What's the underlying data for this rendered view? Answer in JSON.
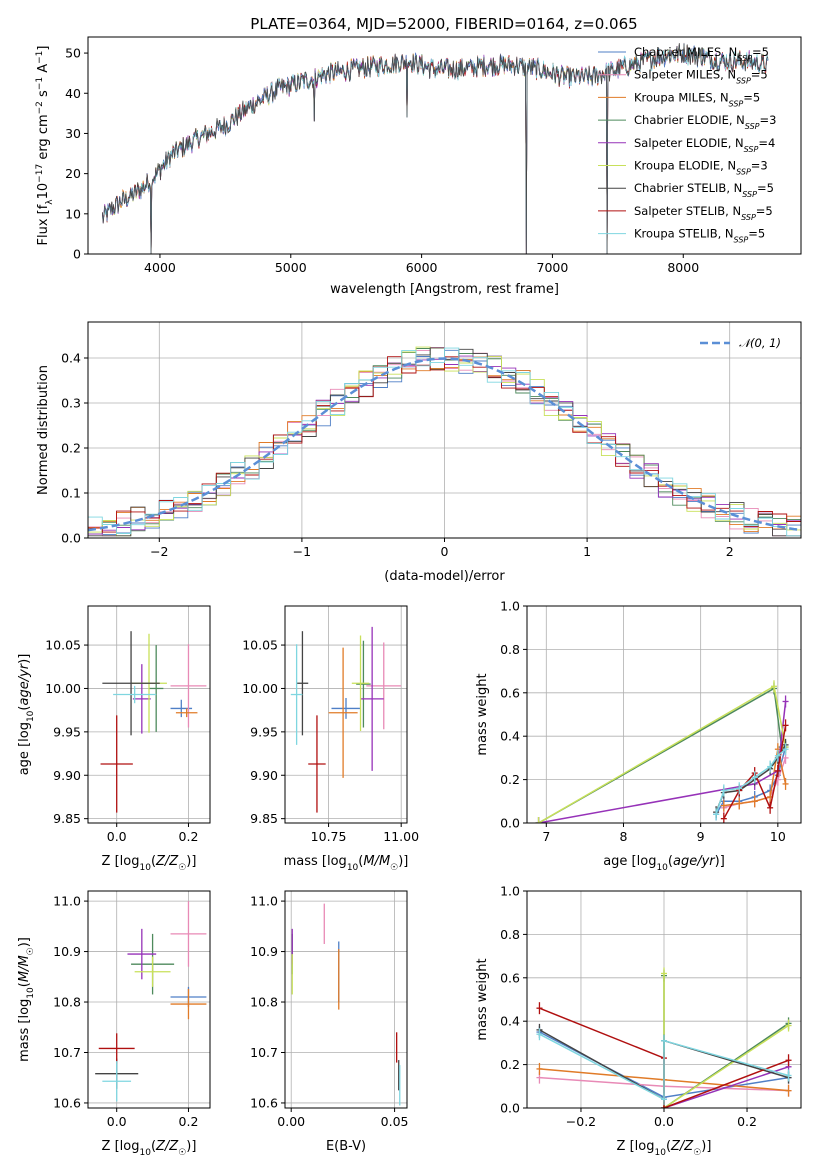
{
  "figure_title": "PLATE=0364, MJD=52000, FIBERID=0164, z=0.065",
  "colors": {
    "Chabrier MILES": "#4f7fc6",
    "Salpeter MILES": "#e88ab6",
    "Kroupa MILES": "#e07b28",
    "Chabrier ELODIE": "#4e8a5c",
    "Salpeter ELODIE": "#9632b8",
    "Kroupa ELODIE": "#c8e05a",
    "Chabrier STELIB": "#444444",
    "Salpeter STELIB": "#b01010",
    "Kroupa STELIB": "#7fd6e0",
    "gaussian": "#5b8fd6",
    "grid": "#b0b0b0"
  },
  "chart_data": [
    {
      "id": "spectrum",
      "type": "line",
      "xlabel": "wavelength [Angstrom, rest frame]",
      "ylabel": "Flux [f_λ 10^-17 erg cm^-2 s^-1 A^-1]",
      "xlim": [
        3450,
        8900
      ],
      "ylim": [
        0,
        54
      ],
      "xticks": [
        4000,
        5000,
        6000,
        7000,
        8000
      ],
      "yticks": [
        0,
        10,
        20,
        30,
        40,
        50
      ],
      "grid": false,
      "legend_position": "top-right",
      "legend": [
        {
          "name": "Chabrier MILES",
          "nssp": "5"
        },
        {
          "name": "Salpeter MILES",
          "nssp": "5"
        },
        {
          "name": "Kroupa MILES",
          "nssp": "5"
        },
        {
          "name": "Chabrier ELODIE",
          "nssp": "3"
        },
        {
          "name": "Salpeter ELODIE",
          "nssp": "4"
        },
        {
          "name": "Kroupa ELODIE",
          "nssp": "3"
        },
        {
          "name": "Chabrier STELIB",
          "nssp": "5"
        },
        {
          "name": "Salpeter STELIB",
          "nssp": "5"
        },
        {
          "name": "Kroupa STELIB",
          "nssp": "5"
        }
      ],
      "continuum": {
        "x": [
          3560,
          3700,
          3850,
          3950,
          4100,
          4300,
          4500,
          4700,
          4900,
          5100,
          5300,
          5500,
          5700,
          5900,
          6100,
          6300,
          6500,
          6700,
          6900,
          7100,
          7300,
          7500,
          7800,
          8000,
          8300,
          8500,
          8650
        ],
        "y": [
          9,
          13,
          16,
          19,
          25,
          29,
          32,
          37,
          41,
          43,
          45,
          46,
          47,
          48,
          46,
          46,
          47,
          47,
          46,
          44,
          44,
          46,
          49,
          50,
          48,
          48,
          47
        ]
      },
      "drops": [
        {
          "x": 3930,
          "y": 0
        },
        {
          "x": 5180,
          "y": 33
        },
        {
          "x": 5890,
          "y": 34
        },
        {
          "x": 6800,
          "y": 0
        },
        {
          "x": 7420,
          "y": 0
        }
      ]
    },
    {
      "id": "residuals",
      "type": "histogram",
      "xlabel": "(data-model)/error",
      "ylabel": "Normed distribution",
      "xlim": [
        -2.5,
        2.5
      ],
      "ylim": [
        0,
        0.48
      ],
      "xticks": [
        -2,
        -1,
        0,
        1,
        2
      ],
      "yticks": [
        0,
        0.1,
        0.2,
        0.3,
        0.4
      ],
      "grid": true,
      "bin_width": 0.1,
      "legend": [
        {
          "name": "𝒩(0, 1)",
          "style": "dashed"
        }
      ],
      "legend_position": "top-right"
    },
    {
      "id": "age_vs_Z",
      "type": "errorbar",
      "xlabel": "Z [log10(Z/Z☉)]",
      "ylabel": "age [log10(age/yr)]",
      "xlim": [
        -0.08,
        0.26
      ],
      "ylim": [
        9.845,
        10.095
      ],
      "xticks": [
        0.0,
        0.2
      ],
      "yticks": [
        9.85,
        9.9,
        9.95,
        10.0,
        10.05
      ],
      "grid": true,
      "points": [
        {
          "series": "Chabrier MILES",
          "x": 0.18,
          "y": 9.977,
          "xerr": 0.03,
          "yerr": 0.01
        },
        {
          "series": "Salpeter MILES",
          "x": 0.2,
          "y": 10.003,
          "xerr": 0.05,
          "yerr": 0.048
        },
        {
          "series": "Kroupa MILES",
          "x": 0.195,
          "y": 9.972,
          "xerr": 0.03,
          "yerr": 0.005
        },
        {
          "series": "Chabrier ELODIE",
          "x": 0.11,
          "y": 10.0,
          "xerr": 0.02,
          "yerr": 0.05
        },
        {
          "series": "Salpeter ELODIE",
          "x": 0.07,
          "y": 9.988,
          "xerr": 0.025,
          "yerr": 0.04
        },
        {
          "series": "Kroupa ELODIE",
          "x": 0.09,
          "y": 10.006,
          "xerr": 0.05,
          "yerr": 0.057
        },
        {
          "series": "Chabrier STELIB",
          "x": 0.04,
          "y": 10.006,
          "xerr": 0.08,
          "yerr": 0.06
        },
        {
          "series": "Salpeter STELIB",
          "x": 0.0,
          "y": 9.913,
          "xerr": 0.045,
          "yerr": 0.056
        },
        {
          "series": "Kroupa STELIB",
          "x": 0.05,
          "y": 9.993,
          "xerr": 0.06,
          "yerr": 0.01
        }
      ]
    },
    {
      "id": "age_vs_mass",
      "type": "errorbar",
      "xlabel": "mass [log10(M/M☉)]",
      "ylabel": "",
      "xlim": [
        10.6,
        11.02
      ],
      "ylim": [
        9.845,
        10.095
      ],
      "xticks": [
        10.75,
        11.0
      ],
      "yticks": [
        9.85,
        9.9,
        9.95,
        10.0,
        10.05
      ],
      "grid": true,
      "points": [
        {
          "series": "Chabrier MILES",
          "x": 10.81,
          "y": 9.977,
          "xerr": 0.05,
          "yerr": 0.012
        },
        {
          "series": "Salpeter MILES",
          "x": 10.94,
          "y": 10.003,
          "xerr": 0.06,
          "yerr": 0.05
        },
        {
          "series": "Kroupa MILES",
          "x": 10.8,
          "y": 9.972,
          "xerr": 0.05,
          "yerr": 0.075
        },
        {
          "series": "Chabrier ELODIE",
          "x": 10.87,
          "y": 10.005,
          "xerr": 0.025,
          "yerr": 0.05
        },
        {
          "series": "Salpeter ELODIE",
          "x": 10.9,
          "y": 9.988,
          "xerr": 0.04,
          "yerr": 0.083
        },
        {
          "series": "Kroupa ELODIE",
          "x": 10.86,
          "y": 10.006,
          "xerr": 0.03,
          "yerr": 0.055
        },
        {
          "series": "Chabrier STELIB",
          "x": 10.66,
          "y": 10.006,
          "xerr": 0.02,
          "yerr": 0.06
        },
        {
          "series": "Salpeter STELIB",
          "x": 10.71,
          "y": 9.913,
          "xerr": 0.03,
          "yerr": 0.056
        },
        {
          "series": "Kroupa STELIB",
          "x": 10.64,
          "y": 9.993,
          "xerr": 0.02,
          "yerr": 0.058
        }
      ]
    },
    {
      "id": "weight_vs_age",
      "type": "line",
      "xlabel": "age [log10(age/yr)]",
      "ylabel": "mass weight",
      "xlim": [
        6.75,
        10.3
      ],
      "ylim": [
        0,
        1.0
      ],
      "xticks": [
        7,
        8,
        9,
        10
      ],
      "yticks": [
        0.0,
        0.2,
        0.4,
        0.6,
        0.8,
        1.0
      ],
      "grid": true,
      "series": [
        {
          "name": "Chabrier MILES",
          "x": [
            9.2,
            9.3,
            9.5,
            9.7,
            9.9,
            10.0,
            10.1
          ],
          "y": [
            0.04,
            0.1,
            0.1,
            0.12,
            0.15,
            0.22,
            0.35
          ]
        },
        {
          "name": "Salpeter MILES",
          "x": [
            9.3,
            9.5,
            9.7,
            9.9,
            10.0,
            10.1
          ],
          "y": [
            0.07,
            0.09,
            0.1,
            0.12,
            0.2,
            0.3
          ]
        },
        {
          "name": "Kroupa MILES",
          "x": [
            9.3,
            9.5,
            9.7,
            9.9,
            10.0,
            10.1
          ],
          "y": [
            0.08,
            0.09,
            0.1,
            0.12,
            0.34,
            0.18
          ]
        },
        {
          "name": "Chabrier ELODIE",
          "x": [
            6.9,
            9.95,
            10.05
          ],
          "y": [
            0.0,
            0.62,
            0.35
          ]
        },
        {
          "name": "Salpeter ELODIE",
          "x": [
            6.9,
            9.7,
            10.0,
            10.1
          ],
          "y": [
            0.0,
            0.18,
            0.24,
            0.56
          ]
        },
        {
          "name": "Kroupa ELODIE",
          "x": [
            6.9,
            9.95,
            10.1
          ],
          "y": [
            0.0,
            0.63,
            0.35
          ]
        },
        {
          "name": "Chabrier STELIB",
          "x": [
            9.2,
            9.3,
            9.5,
            9.7,
            9.9,
            10.0,
            10.1
          ],
          "y": [
            0.05,
            0.14,
            0.15,
            0.2,
            0.25,
            0.3,
            0.36
          ]
        },
        {
          "name": "Salpeter STELIB",
          "x": [
            9.3,
            9.5,
            9.7,
            9.9,
            10.0,
            10.1
          ],
          "y": [
            0.02,
            0.15,
            0.23,
            0.07,
            0.24,
            0.45
          ]
        },
        {
          "name": "Kroupa STELIB",
          "x": [
            9.2,
            9.3,
            9.5,
            9.7,
            9.9,
            10.0,
            10.1
          ],
          "y": [
            0.04,
            0.15,
            0.16,
            0.21,
            0.26,
            0.31,
            0.34
          ]
        }
      ]
    },
    {
      "id": "mass_vs_Z",
      "type": "errorbar",
      "xlabel": "Z [log10(Z/Z☉)]",
      "ylabel": "mass [log10(M/M☉)]",
      "xlim": [
        -0.08,
        0.26
      ],
      "ylim": [
        10.59,
        11.02
      ],
      "xticks": [
        0.0,
        0.2
      ],
      "yticks": [
        10.6,
        10.7,
        10.8,
        10.9,
        11.0
      ],
      "grid": true,
      "points": [
        {
          "series": "Chabrier MILES",
          "x": 0.2,
          "y": 10.81,
          "xerr": 0.05,
          "yerr": 0.02
        },
        {
          "series": "Salpeter MILES",
          "x": 0.2,
          "y": 10.935,
          "xerr": 0.05,
          "yerr": 0.065
        },
        {
          "series": "Kroupa MILES",
          "x": 0.2,
          "y": 10.796,
          "xerr": 0.05,
          "yerr": 0.03
        },
        {
          "series": "Chabrier ELODIE",
          "x": 0.1,
          "y": 10.875,
          "xerr": 0.06,
          "yerr": 0.06
        },
        {
          "series": "Salpeter ELODIE",
          "x": 0.07,
          "y": 10.895,
          "xerr": 0.04,
          "yerr": 0.05
        },
        {
          "series": "Kroupa ELODIE",
          "x": 0.1,
          "y": 10.86,
          "xerr": 0.05,
          "yerr": 0.03
        },
        {
          "series": "Chabrier STELIB",
          "x": 0.0,
          "y": 10.658,
          "xerr": 0.06,
          "yerr": 0.03
        },
        {
          "series": "Salpeter STELIB",
          "x": 0.0,
          "y": 10.708,
          "xerr": 0.05,
          "yerr": 0.03
        },
        {
          "series": "Kroupa STELIB",
          "x": 0.0,
          "y": 10.643,
          "xerr": 0.04,
          "yerr": 0.04
        }
      ]
    },
    {
      "id": "mass_vs_ebv",
      "type": "errorbar",
      "xlabel": "E(B-V)",
      "ylabel": "",
      "xlim": [
        -0.003,
        0.056
      ],
      "ylim": [
        10.59,
        11.02
      ],
      "xticks": [
        0.0,
        0.05
      ],
      "yticks": [
        10.6,
        10.7,
        10.8,
        10.9,
        11.0
      ],
      "grid": true,
      "points": [
        {
          "series": "Chabrier MILES",
          "x": 0.023,
          "y": 10.86,
          "xerr": 0.0,
          "yerr": 0.06
        },
        {
          "series": "Salpeter MILES",
          "x": 0.016,
          "y": 10.955,
          "xerr": 0.0,
          "yerr": 0.04
        },
        {
          "series": "Kroupa MILES",
          "x": 0.023,
          "y": 10.845,
          "xerr": 0.0,
          "yerr": 0.06
        },
        {
          "series": "Chabrier ELODIE",
          "x": 0.0005,
          "y": 10.895,
          "xerr": 0.0,
          "yerr": 0.04
        },
        {
          "series": "Salpeter ELODIE",
          "x": 0.0005,
          "y": 10.91,
          "xerr": 0.0,
          "yerr": 0.035
        },
        {
          "series": "Kroupa ELODIE",
          "x": 0.0005,
          "y": 10.855,
          "xerr": 0.0,
          "yerr": 0.04
        },
        {
          "series": "Chabrier STELIB",
          "x": 0.052,
          "y": 10.655,
          "xerr": 0.0,
          "yerr": 0.03
        },
        {
          "series": "Salpeter STELIB",
          "x": 0.051,
          "y": 10.71,
          "xerr": 0.0,
          "yerr": 0.03
        },
        {
          "series": "Kroupa STELIB",
          "x": 0.0525,
          "y": 10.635,
          "xerr": 0.0,
          "yerr": 0.04
        }
      ]
    },
    {
      "id": "weight_vs_Z",
      "type": "line",
      "xlabel": "Z [log10(Z/Z☉)]",
      "ylabel": "mass weight",
      "xlim": [
        -0.33,
        0.33
      ],
      "ylim": [
        0,
        1.0
      ],
      "xticks": [
        -0.2,
        0.0,
        0.2
      ],
      "yticks": [
        0.0,
        0.2,
        0.4,
        0.6,
        0.8,
        1.0
      ],
      "grid": true,
      "series": [
        {
          "name": "Chabrier MILES",
          "x": [
            -0.3,
            0.0,
            0.3
          ],
          "y": [
            0.35,
            0.05,
            0.14
          ]
        },
        {
          "name": "Salpeter MILES",
          "x": [
            -0.3,
            0.0,
            0.3
          ],
          "y": [
            0.14,
            0.1,
            0.08
          ]
        },
        {
          "name": "Kroupa MILES",
          "x": [
            -0.3,
            0.0,
            0.3
          ],
          "y": [
            0.18,
            0.13,
            0.08
          ]
        },
        {
          "name": "Chabrier ELODIE",
          "x": [
            0.0,
            0.0,
            0.3
          ],
          "y": [
            0.61,
            0.0,
            0.39
          ]
        },
        {
          "name": "Salpeter ELODIE",
          "x": [
            0.0,
            0.3
          ],
          "y": [
            0.0,
            0.19
          ]
        },
        {
          "name": "Kroupa ELODIE",
          "x": [
            0.0,
            0.0,
            0.3
          ],
          "y": [
            0.62,
            0.0,
            0.38
          ]
        },
        {
          "name": "Chabrier STELIB",
          "x": [
            -0.3,
            0.0,
            0.0,
            0.3
          ],
          "y": [
            0.36,
            0.04,
            0.31,
            0.14
          ]
        },
        {
          "name": "Salpeter STELIB",
          "x": [
            -0.3,
            0.0,
            0.0,
            0.3
          ],
          "y": [
            0.46,
            0.23,
            0.0,
            0.22
          ]
        },
        {
          "name": "Kroupa STELIB",
          "x": [
            -0.3,
            0.0,
            0.0,
            0.3
          ],
          "y": [
            0.34,
            0.04,
            0.31,
            0.15
          ]
        }
      ]
    }
  ]
}
